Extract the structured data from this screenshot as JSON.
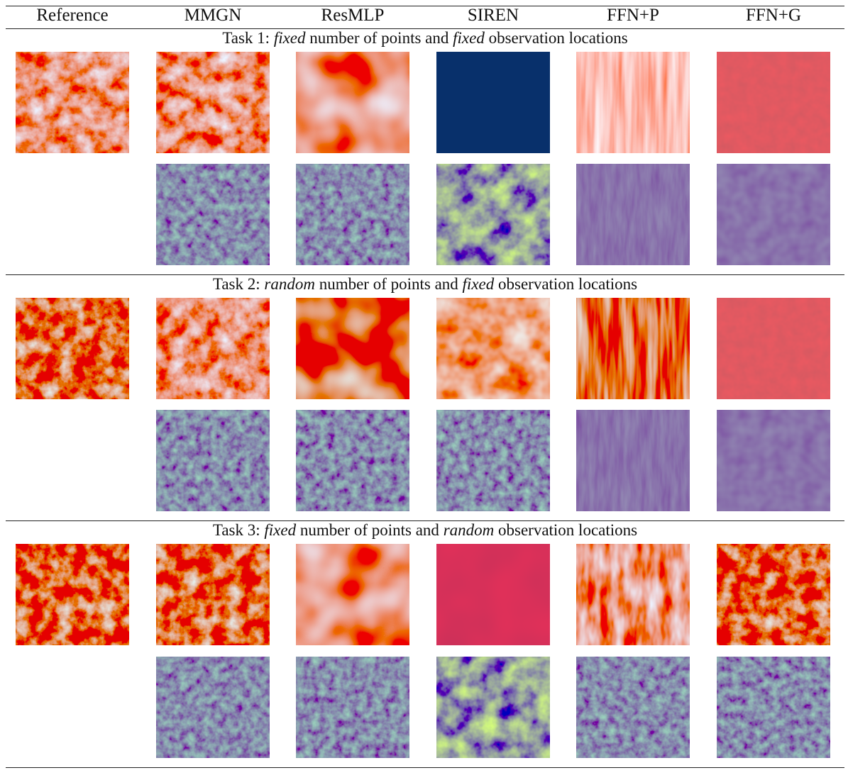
{
  "columns": [
    "Reference",
    "MMGN",
    "ResMLP",
    "SIREN",
    "FFN+P",
    "FFN+G"
  ],
  "tasks": [
    {
      "pre": "Task 1: ",
      "em1": "fixed",
      "mid": " number of points and ",
      "em2": "fixed",
      "post": " observation locations",
      "recon": [
        "field",
        "field",
        "smooth-field",
        "solid-blue",
        "plaid-pale",
        "red-dots"
      ],
      "error": [
        "low",
        "low",
        "high",
        "grid-low",
        "very-low"
      ]
    },
    {
      "pre": "Task 2: ",
      "em1": "random",
      "mid": " number of points and ",
      "em2": "fixed",
      "post": " observation locations",
      "recon": [
        "field-red",
        "field",
        "smooth-red",
        "mottled-red",
        "plaid-red",
        "red-dots"
      ],
      "error": [
        "low",
        "low",
        "low",
        "grid-low",
        "very-low"
      ]
    },
    {
      "pre": "Task 3: ",
      "em1": "fixed",
      "mid": " number of points and ",
      "em2": "random",
      "post": " observation locations",
      "recon": [
        "field-red",
        "field-red",
        "smooth-field",
        "solid-red",
        "plaid-field",
        "field-red"
      ],
      "error": [
        "low",
        "low",
        "high",
        "low",
        "low"
      ]
    }
  ],
  "colors": {
    "red_dark": "#a50026",
    "red": "#d73027",
    "pale": "#fbe5dd",
    "white": "#f7f7f7",
    "blue": "#4575b4",
    "navy": "#08306b",
    "viridis_dark": "#3b1f6b",
    "viridis_teal": "#21918c",
    "viridis_yellow": "#fde725"
  }
}
